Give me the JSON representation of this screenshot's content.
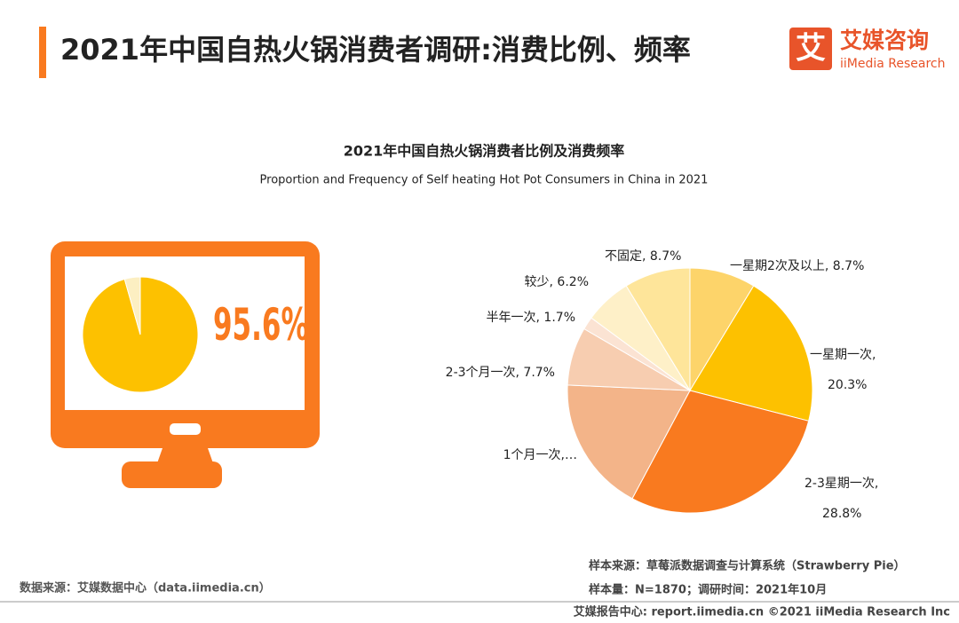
{
  "header": {
    "title": "2021年中国自热火锅消费者调研:消费比例、频率",
    "logo_mark": "艾",
    "logo_cn": "艾媒咨询",
    "logo_en": "iiMedia Research"
  },
  "chart_data": [
    {
      "type": "pie",
      "categories": [
        null,
        null
      ],
      "values": [
        95.6,
        4.4
      ],
      "value_labels": [
        "95.6%",
        null
      ],
      "colors": [
        "#fdc100",
        "#fcefc2"
      ],
      "label_color": "#f97a1f"
    },
    {
      "type": "pie",
      "title": "2021年中国自热火锅消费者比例及消费频率",
      "subtitle": "Proportion and Frequency of Self heating Hot Pot Consumers in China in 2021",
      "values": [
        8.7,
        20.3,
        28.8,
        17.9,
        7.7,
        1.7,
        6.2,
        8.7
      ],
      "value_labels": [
        [
          "一星期2次及以上, 8.7%"
        ],
        [
          "一星期一次,",
          "20.3%"
        ],
        [
          "2-3星期一次,",
          "28.8%"
        ],
        [
          "1个月一次,…"
        ],
        [
          "2-3个月一次, 7.7%"
        ],
        [
          "半年一次, 1.7%"
        ],
        [
          "较少, 6.2%"
        ],
        [
          "不固定, 8.7%"
        ]
      ],
      "colors": [
        "#fdd46a",
        "#fdc100",
        "#f97a1f",
        "#f3b489",
        "#f7cdb0",
        "#fbe3d3",
        "#fef0c8",
        "#fee59a"
      ]
    }
  ],
  "footer": {
    "source": "数据来源：艾媒数据中心（data.iimedia.cn）",
    "sample_source": "样本来源：草莓派数据调查与计算系统（Strawberry Pie）",
    "sample_size": "样本量：N=1870；调研时间：2021年10月",
    "copyright": "艾媒报告中心: report.iimedia.cn  ©2021  iiMedia Research Inc"
  }
}
